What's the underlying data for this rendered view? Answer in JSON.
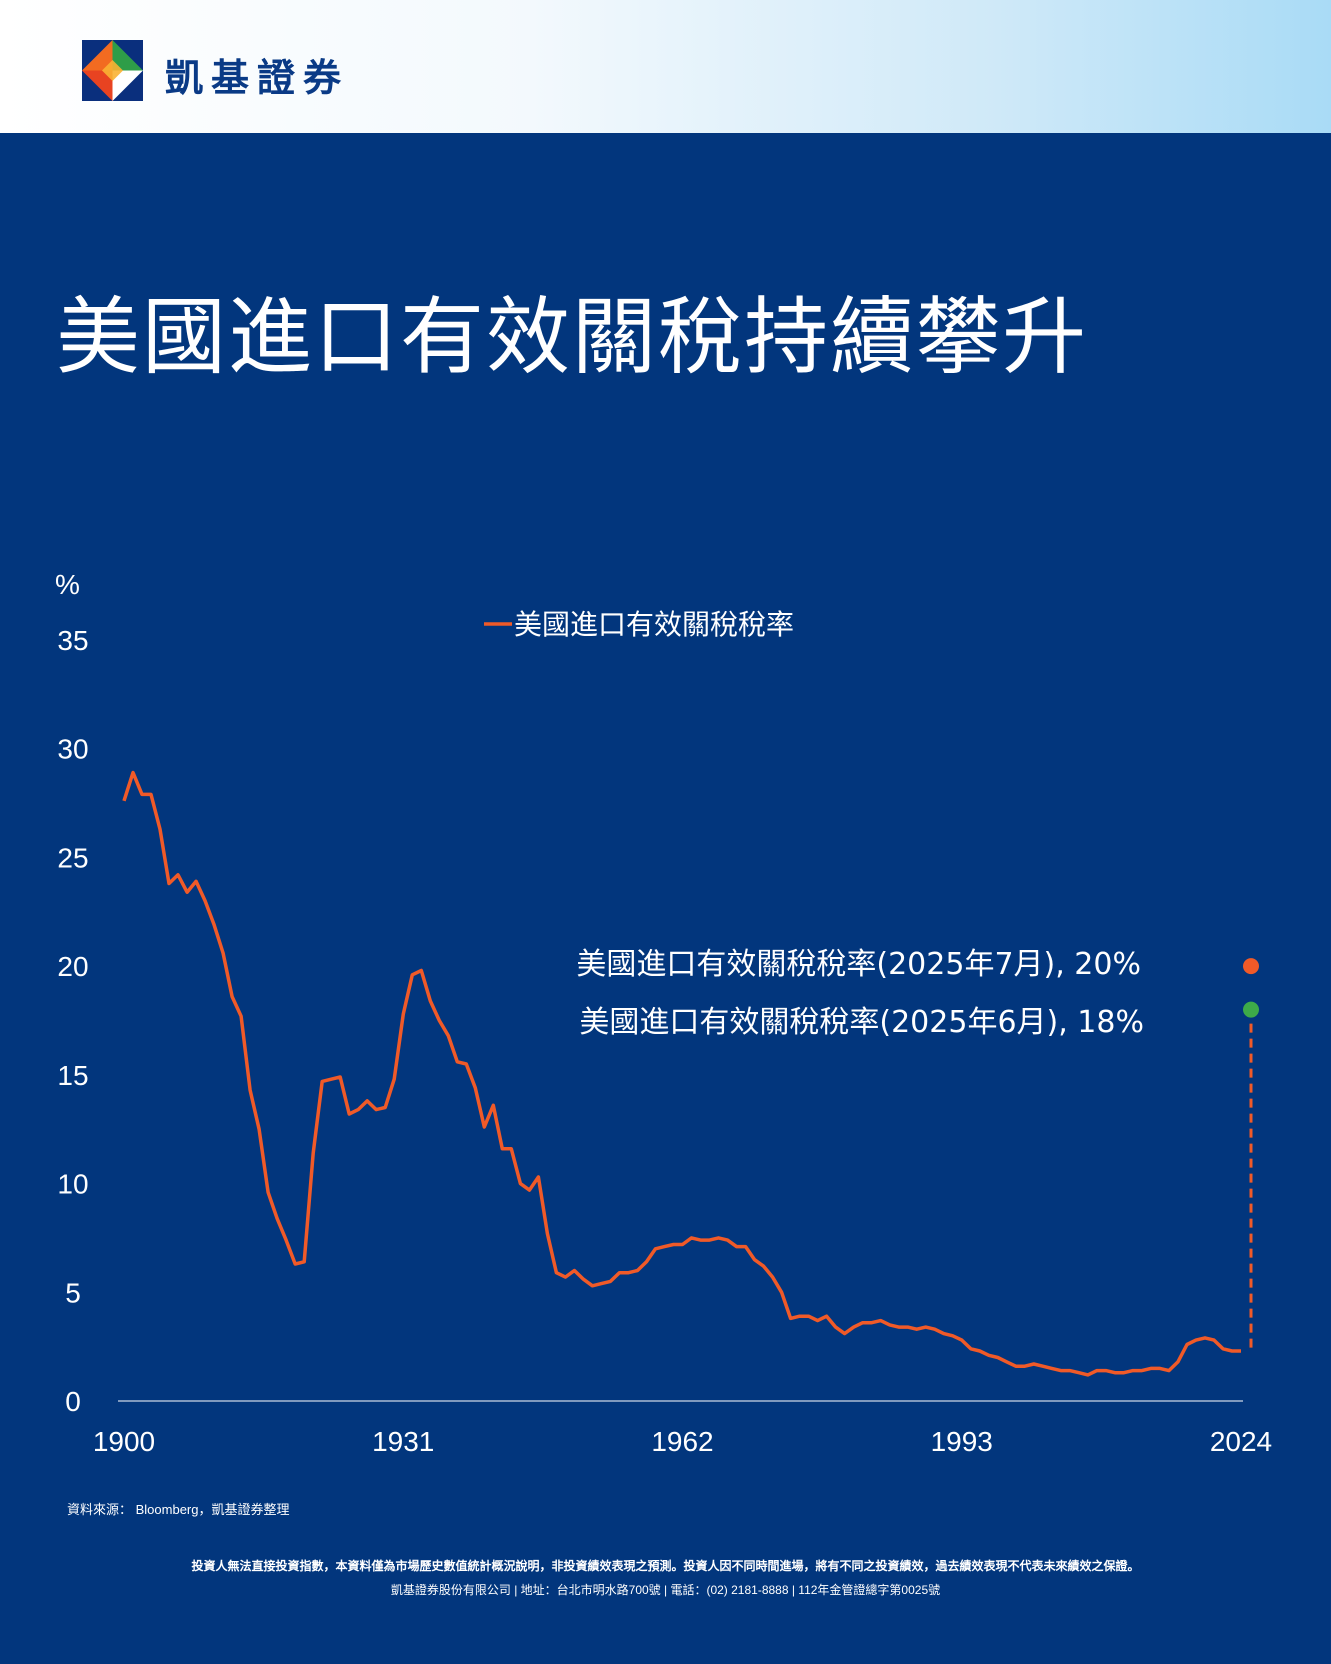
{
  "brand": {
    "name": "凱基證券"
  },
  "title": "美國進口有效關稅持續攀升",
  "chart_data": {
    "type": "line",
    "ylabel": "%",
    "ylim": [
      0,
      35
    ],
    "yticks": [
      "0",
      "5",
      "10",
      "15",
      "20",
      "25",
      "30",
      "35"
    ],
    "xlim": [
      1900,
      2024
    ],
    "xticks": [
      "1900",
      "1931",
      "1962",
      "1993",
      "2024"
    ],
    "legend": "top-center",
    "series": [
      {
        "name": "美國進口有效關稅稅率",
        "color": "#f05a28",
        "x": [
          1900,
          1901,
          1902,
          1903,
          1904,
          1905,
          1906,
          1907,
          1908,
          1909,
          1910,
          1911,
          1912,
          1913,
          1914,
          1915,
          1916,
          1917,
          1918,
          1919,
          1920,
          1921,
          1922,
          1923,
          1924,
          1925,
          1926,
          1927,
          1928,
          1929,
          1930,
          1931,
          1932,
          1933,
          1934,
          1935,
          1936,
          1937,
          1938,
          1939,
          1940,
          1941,
          1942,
          1943,
          1944,
          1945,
          1946,
          1947,
          1948,
          1949,
          1950,
          1951,
          1952,
          1953,
          1954,
          1955,
          1956,
          1957,
          1958,
          1959,
          1960,
          1961,
          1962,
          1963,
          1964,
          1965,
          1966,
          1967,
          1968,
          1969,
          1970,
          1971,
          1972,
          1973,
          1974,
          1975,
          1976,
          1977,
          1978,
          1979,
          1980,
          1981,
          1982,
          1983,
          1984,
          1985,
          1986,
          1987,
          1988,
          1989,
          1990,
          1991,
          1992,
          1993,
          1994,
          1995,
          1996,
          1997,
          1998,
          1999,
          2000,
          2001,
          2002,
          2003,
          2004,
          2005,
          2006,
          2007,
          2008,
          2009,
          2010,
          2011,
          2012,
          2013,
          2014,
          2015,
          2016,
          2017,
          2018,
          2019,
          2020,
          2021,
          2022,
          2023,
          2024
        ],
        "values": [
          27.6,
          28.9,
          27.9,
          27.9,
          26.3,
          23.8,
          24.2,
          23.4,
          23.9,
          23.0,
          21.9,
          20.6,
          18.6,
          17.7,
          14.3,
          12.5,
          9.6,
          8.4,
          7.4,
          6.3,
          6.4,
          11.4,
          14.7,
          14.8,
          14.9,
          13.2,
          13.4,
          13.8,
          13.4,
          13.5,
          14.8,
          17.8,
          19.6,
          19.8,
          18.4,
          17.5,
          16.8,
          15.6,
          15.5,
          14.4,
          12.6,
          13.6,
          11.6,
          11.6,
          10.0,
          9.7,
          10.3,
          7.7,
          5.9,
          5.7,
          6.0,
          5.6,
          5.3,
          5.4,
          5.5,
          5.9,
          5.9,
          6.0,
          6.4,
          7.0,
          7.1,
          7.2,
          7.2,
          7.5,
          7.4,
          7.4,
          7.5,
          7.4,
          7.1,
          7.1,
          6.5,
          6.2,
          5.7,
          5.0,
          3.8,
          3.9,
          3.9,
          3.7,
          3.9,
          3.4,
          3.1,
          3.4,
          3.6,
          3.6,
          3.7,
          3.5,
          3.4,
          3.4,
          3.3,
          3.4,
          3.3,
          3.1,
          3.0,
          2.8,
          2.4,
          2.3,
          2.1,
          2.0,
          1.8,
          1.6,
          1.6,
          1.7,
          1.6,
          1.5,
          1.4,
          1.4,
          1.3,
          1.2,
          1.4,
          1.4,
          1.3,
          1.3,
          1.4,
          1.4,
          1.5,
          1.5,
          1.4,
          1.8,
          2.6,
          2.8,
          2.9,
          2.8,
          2.4,
          2.3,
          2.3
        ]
      }
    ],
    "annotations": [
      {
        "label": "美國進口有效關稅稅率(2025年7月), 20%",
        "value": 20,
        "color": "#f05a28"
      },
      {
        "label": "美國進口有效關稅稅率(2025年6月), 18%",
        "value": 18,
        "color": "#3dab49"
      }
    ]
  },
  "footer": {
    "source": "資料來源： Bloomberg，凱基證券整理",
    "disclaimer": "投資人無法直接投資指數，本資料僅為市場歷史數值統計概況說明，非投資績效表現之預測。投資人因不同時間進場，將有不同之投資績效，過去績效表現不代表未來績效之保證。",
    "company": "凱基證券股份有限公司 | 地址：台北市明水路700號 | 電話：(02) 2181-8888 | 112年金管證總字第0025號"
  }
}
